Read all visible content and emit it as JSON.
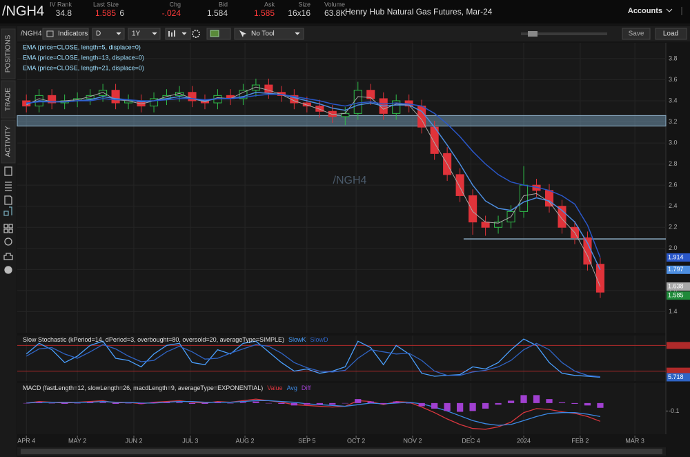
{
  "header": {
    "symbol": "/NGH4",
    "fields": [
      {
        "label": "IV Rank",
        "value": "34.8"
      },
      {
        "label": "Last Size",
        "value": "1.585",
        "extra": "6"
      },
      {
        "label": "Chg",
        "value": "-.024"
      },
      {
        "label": "Bid",
        "value": "1.584"
      },
      {
        "label": "Ask",
        "value": "1.585"
      },
      {
        "label": "Size",
        "value": "16x16"
      },
      {
        "label": "Volume",
        "value": "63.8K"
      }
    ],
    "description": "Henry Hub Natural Gas Futures, Mar-24",
    "accounts": "Accounts"
  },
  "toolbar": {
    "symbol": "/NGH4",
    "indicators": "Indicators",
    "aggregation": "D",
    "period": "1Y",
    "tool": "No Tool",
    "save": "Save",
    "load": "Load"
  },
  "sidebar": [
    "POSITIONS",
    "TRADE",
    "ACTIVITY"
  ],
  "chart_data": [
    {
      "type": "candlestick",
      "watermark": "/NGH4",
      "x": [
        0,
        7,
        14,
        21,
        28,
        35,
        42,
        49,
        56,
        63,
        70,
        77,
        84,
        91,
        98,
        105,
        112,
        119,
        126,
        133,
        140,
        147,
        154,
        161,
        168,
        175,
        182,
        189,
        196,
        203,
        210,
        217,
        224,
        231,
        238,
        245,
        252,
        259,
        266,
        273,
        280,
        287,
        294,
        301,
        308,
        315
      ],
      "open": [
        3.4,
        3.35,
        3.45,
        3.38,
        3.4,
        3.42,
        3.45,
        3.5,
        3.38,
        3.4,
        3.35,
        3.42,
        3.45,
        3.48,
        3.4,
        3.38,
        3.45,
        3.42,
        3.5,
        3.55,
        3.48,
        3.45,
        3.38,
        3.35,
        3.3,
        3.25,
        3.28,
        3.5,
        3.42,
        3.28,
        3.4,
        3.35,
        3.15,
        2.9,
        2.7,
        2.5,
        2.25,
        2.2,
        2.25,
        2.35,
        2.6,
        2.55,
        2.4,
        2.2,
        2.1,
        1.85
      ],
      "high": [
        3.46,
        3.51,
        3.51,
        3.46,
        3.48,
        3.51,
        3.56,
        3.56,
        3.46,
        3.46,
        3.48,
        3.51,
        3.54,
        3.54,
        3.46,
        3.51,
        3.51,
        3.56,
        3.61,
        3.61,
        3.54,
        3.51,
        3.44,
        3.41,
        3.36,
        3.34,
        3.58,
        3.56,
        3.48,
        3.46,
        3.46,
        3.41,
        3.21,
        2.96,
        2.76,
        2.56,
        2.31,
        2.31,
        2.41,
        2.78,
        2.66,
        2.61,
        2.46,
        2.26,
        2.16,
        1.91
      ],
      "low": [
        3.29,
        3.29,
        3.32,
        3.32,
        3.34,
        3.36,
        3.39,
        3.32,
        3.32,
        3.29,
        3.29,
        3.36,
        3.39,
        3.34,
        3.32,
        3.32,
        3.36,
        3.36,
        3.44,
        3.42,
        3.39,
        3.32,
        3.29,
        3.24,
        3.19,
        3.17,
        3.22,
        3.36,
        3.22,
        3.22,
        3.29,
        3.09,
        2.84,
        2.64,
        2.44,
        2.13,
        2.12,
        2.14,
        2.19,
        2.29,
        2.49,
        2.34,
        2.14,
        2.04,
        1.79,
        1.53
      ],
      "close": [
        3.35,
        3.45,
        3.38,
        3.4,
        3.42,
        3.45,
        3.5,
        3.38,
        3.4,
        3.35,
        3.42,
        3.45,
        3.48,
        3.4,
        3.38,
        3.45,
        3.42,
        3.5,
        3.55,
        3.48,
        3.45,
        3.38,
        3.35,
        3.3,
        3.25,
        3.28,
        3.5,
        3.42,
        3.28,
        3.4,
        3.35,
        3.15,
        2.9,
        2.7,
        2.5,
        2.25,
        2.2,
        2.25,
        2.35,
        2.6,
        2.55,
        2.4,
        2.2,
        2.1,
        1.85,
        1.585
      ],
      "up_color": "#2fbf4a",
      "down_color": "#e0333a",
      "series": [
        {
          "name": "EMA (price=CLOSE, length=5, displace=0)",
          "color": "#a8a8a8",
          "values": [
            3.36,
            3.42,
            3.39,
            3.4,
            3.41,
            3.44,
            3.48,
            3.41,
            3.4,
            3.37,
            3.4,
            3.44,
            3.47,
            3.42,
            3.39,
            3.43,
            3.42,
            3.48,
            3.53,
            3.5,
            3.46,
            3.4,
            3.36,
            3.32,
            3.27,
            3.28,
            3.44,
            3.43,
            3.32,
            3.37,
            3.36,
            3.22,
            3.0,
            2.8,
            2.58,
            2.35,
            2.25,
            2.24,
            2.3,
            2.5,
            2.52,
            2.44,
            2.28,
            2.15,
            1.93,
            1.638
          ]
        },
        {
          "name": "EMA (price=CLOSE, length=13, displace=0)",
          "color": "#4d8ee0",
          "values": [
            3.37,
            3.4,
            3.39,
            3.39,
            3.4,
            3.41,
            3.44,
            3.42,
            3.41,
            3.39,
            3.4,
            3.42,
            3.44,
            3.42,
            3.4,
            3.42,
            3.42,
            3.44,
            3.48,
            3.47,
            3.46,
            3.43,
            3.4,
            3.37,
            3.33,
            3.31,
            3.36,
            3.38,
            3.35,
            3.36,
            3.36,
            3.3,
            3.15,
            2.98,
            2.8,
            2.6,
            2.45,
            2.38,
            2.36,
            2.44,
            2.48,
            2.45,
            2.36,
            2.25,
            2.05,
            1.797
          ]
        },
        {
          "name": "EMA (price=CLOSE, length=21, displace=0)",
          "color": "#2a57c8",
          "values": [
            3.38,
            3.39,
            3.39,
            3.39,
            3.4,
            3.4,
            3.42,
            3.41,
            3.41,
            3.4,
            3.4,
            3.41,
            3.42,
            3.42,
            3.41,
            3.42,
            3.42,
            3.43,
            3.45,
            3.46,
            3.46,
            3.44,
            3.42,
            3.4,
            3.37,
            3.35,
            3.38,
            3.39,
            3.37,
            3.38,
            3.37,
            3.35,
            3.28,
            3.18,
            3.06,
            2.92,
            2.8,
            2.7,
            2.63,
            2.6,
            2.58,
            2.55,
            2.5,
            2.42,
            2.22,
            1.914
          ]
        }
      ],
      "zone": [
        3.16,
        3.26
      ],
      "support": {
        "from": 240,
        "value": 2.09
      },
      "xlim": [
        -5,
        351
      ],
      "xticks": [
        {
          "value": 0,
          "label": "APR 4"
        },
        {
          "value": 28,
          "label": "MAY 2"
        },
        {
          "value": 59,
          "label": "JUN 2"
        },
        {
          "value": 90,
          "label": "JUL 3"
        },
        {
          "value": 120,
          "label": "AUG 2"
        },
        {
          "value": 154,
          "label": "SEP 5"
        },
        {
          "value": 181,
          "label": "OCT 2"
        },
        {
          "value": 212,
          "label": "NOV 2"
        },
        {
          "value": 244,
          "label": "DEC 4"
        },
        {
          "value": 273,
          "label": "2024"
        },
        {
          "value": 304,
          "label": "FEB 2"
        },
        {
          "value": 334,
          "label": "MAR 3"
        }
      ],
      "ylim": [
        1.2,
        3.95
      ],
      "yticks": [
        1.4,
        1.6,
        1.8,
        {
          "value": 2,
          "label": "2.0"
        },
        2.2,
        2.4,
        2.6,
        2.8,
        {
          "value": 3,
          "label": "3.0"
        },
        3.2,
        3.4,
        3.6,
        3.8
      ],
      "grid": true
    },
    {
      "type": "line",
      "title": "Slow Stochastic (kPeriod=14, dPeriod=3, overbought=80, oversold=20, averageType=SIMPLE)",
      "series": [
        {
          "name": "SlowK",
          "color": "#4aa0ff",
          "values": [
            60,
            85,
            70,
            40,
            55,
            80,
            90,
            50,
            45,
            30,
            60,
            80,
            85,
            40,
            35,
            70,
            60,
            85,
            90,
            65,
            40,
            20,
            25,
            15,
            20,
            30,
            90,
            75,
            35,
            80,
            60,
            15,
            8,
            10,
            12,
            30,
            25,
            40,
            70,
            95,
            80,
            40,
            15,
            10,
            8,
            5.718
          ]
        },
        {
          "name": "SlowD",
          "color": "#2f64c4",
          "values": [
            55,
            72,
            75,
            60,
            50,
            65,
            82,
            72,
            55,
            42,
            45,
            65,
            78,
            65,
            48,
            50,
            62,
            72,
            82,
            78,
            62,
            40,
            28,
            20,
            18,
            22,
            50,
            70,
            65,
            60,
            62,
            45,
            20,
            10,
            10,
            18,
            22,
            30,
            45,
            70,
            85,
            70,
            40,
            20,
            10,
            7
          ]
        }
      ],
      "levels": [
        80,
        20
      ],
      "ylim": [
        0,
        100
      ]
    },
    {
      "type": "line",
      "title": "MACD (fastLength=12, slowLength=26, macdLength=9, averageType=EXPONENTIAL)",
      "series": [
        {
          "name": "Value",
          "color": "#d9363e",
          "values": [
            0,
            0.02,
            0.01,
            0,
            0.01,
            0.02,
            0.03,
            0,
            0.01,
            -0.01,
            0.01,
            0.02,
            0.03,
            0.01,
            0,
            0.02,
            0.01,
            0.03,
            0.05,
            0.03,
            0.01,
            -0.02,
            -0.03,
            -0.04,
            -0.05,
            -0.04,
            0.03,
            0.02,
            -0.02,
            0.02,
            0.01,
            -0.05,
            -0.12,
            -0.2,
            -0.27,
            -0.32,
            -0.33,
            -0.3,
            -0.24,
            -0.12,
            -0.07,
            -0.08,
            -0.11,
            -0.13,
            -0.17,
            -0.23
          ]
        },
        {
          "name": "Avg",
          "color": "#3c8ae6",
          "values": [
            0,
            0.01,
            0.01,
            0.01,
            0.01,
            0.01,
            0.02,
            0.01,
            0.01,
            0,
            0,
            0.01,
            0.02,
            0.02,
            0.01,
            0.01,
            0.01,
            0.02,
            0.03,
            0.03,
            0.02,
            0.01,
            -0.01,
            -0.02,
            -0.03,
            -0.04,
            -0.02,
            0,
            -0.01,
            0,
            0.01,
            -0.01,
            -0.05,
            -0.1,
            -0.16,
            -0.22,
            -0.26,
            -0.28,
            -0.27,
            -0.22,
            -0.17,
            -0.13,
            -0.12,
            -0.12,
            -0.14,
            -0.17
          ]
        },
        {
          "name": "Diff",
          "color": "#a040d0",
          "kind": "bar",
          "values": [
            0,
            0.01,
            0,
            -0.01,
            0,
            0.01,
            0.01,
            -0.01,
            0,
            -0.01,
            0.01,
            0.01,
            0.01,
            -0.01,
            -0.01,
            0.01,
            0,
            0.01,
            0.02,
            0,
            -0.01,
            -0.03,
            -0.02,
            -0.02,
            -0.02,
            0,
            0.05,
            0.02,
            -0.01,
            0.02,
            0,
            -0.04,
            -0.07,
            -0.1,
            -0.11,
            -0.1,
            -0.07,
            -0.02,
            0.03,
            0.1,
            0.1,
            0.05,
            0.01,
            -0.01,
            -0.03,
            -0.06
          ]
        }
      ],
      "ylim": [
        -0.375,
        0.225
      ],
      "yticks": [
        {
          "value": -0.1,
          "label": "-0.1"
        }
      ]
    }
  ]
}
